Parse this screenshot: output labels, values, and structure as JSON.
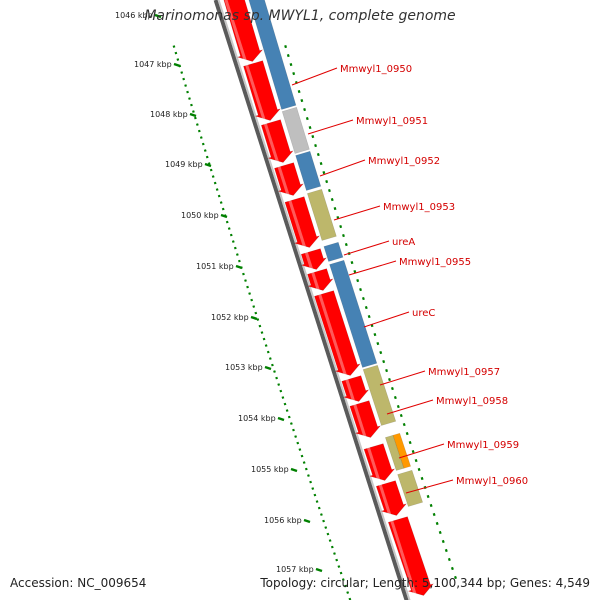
{
  "title": "Marinomonas sp. MWYL1, complete genome",
  "footer": {
    "accession": "Accession: NC_009654",
    "topology": "Topology: circular; Length: 5,100,344 bp; Genes: 4,549"
  },
  "kbp_ticks": [
    "1046 kbp",
    "1047 kbp",
    "1048 kbp",
    "1049 kbp",
    "1050 kbp",
    "1051 kbp",
    "1052 kbp",
    "1053 kbp",
    "1054 kbp",
    "1055 kbp",
    "1056 kbp",
    "1057 kbp"
  ],
  "gene_labels": [
    "Mmwyl1_0950",
    "Mmwyl1_0951",
    "Mmwyl1_0952",
    "Mmwyl1_0953",
    "ureA",
    "Mmwyl1_0955",
    "ureC",
    "Mmwyl1_0957",
    "Mmwyl1_0958",
    "Mmwyl1_0959",
    "Mmwyl1_0960"
  ],
  "colors": {
    "cds": "#ff0000",
    "blue": "#4682b4",
    "grey": "#bfbfbf",
    "khaki": "#bdb76b",
    "orange": "#ff9900",
    "backbone": "#808080",
    "gc_green": "#008000",
    "label": "#d40000"
  }
}
